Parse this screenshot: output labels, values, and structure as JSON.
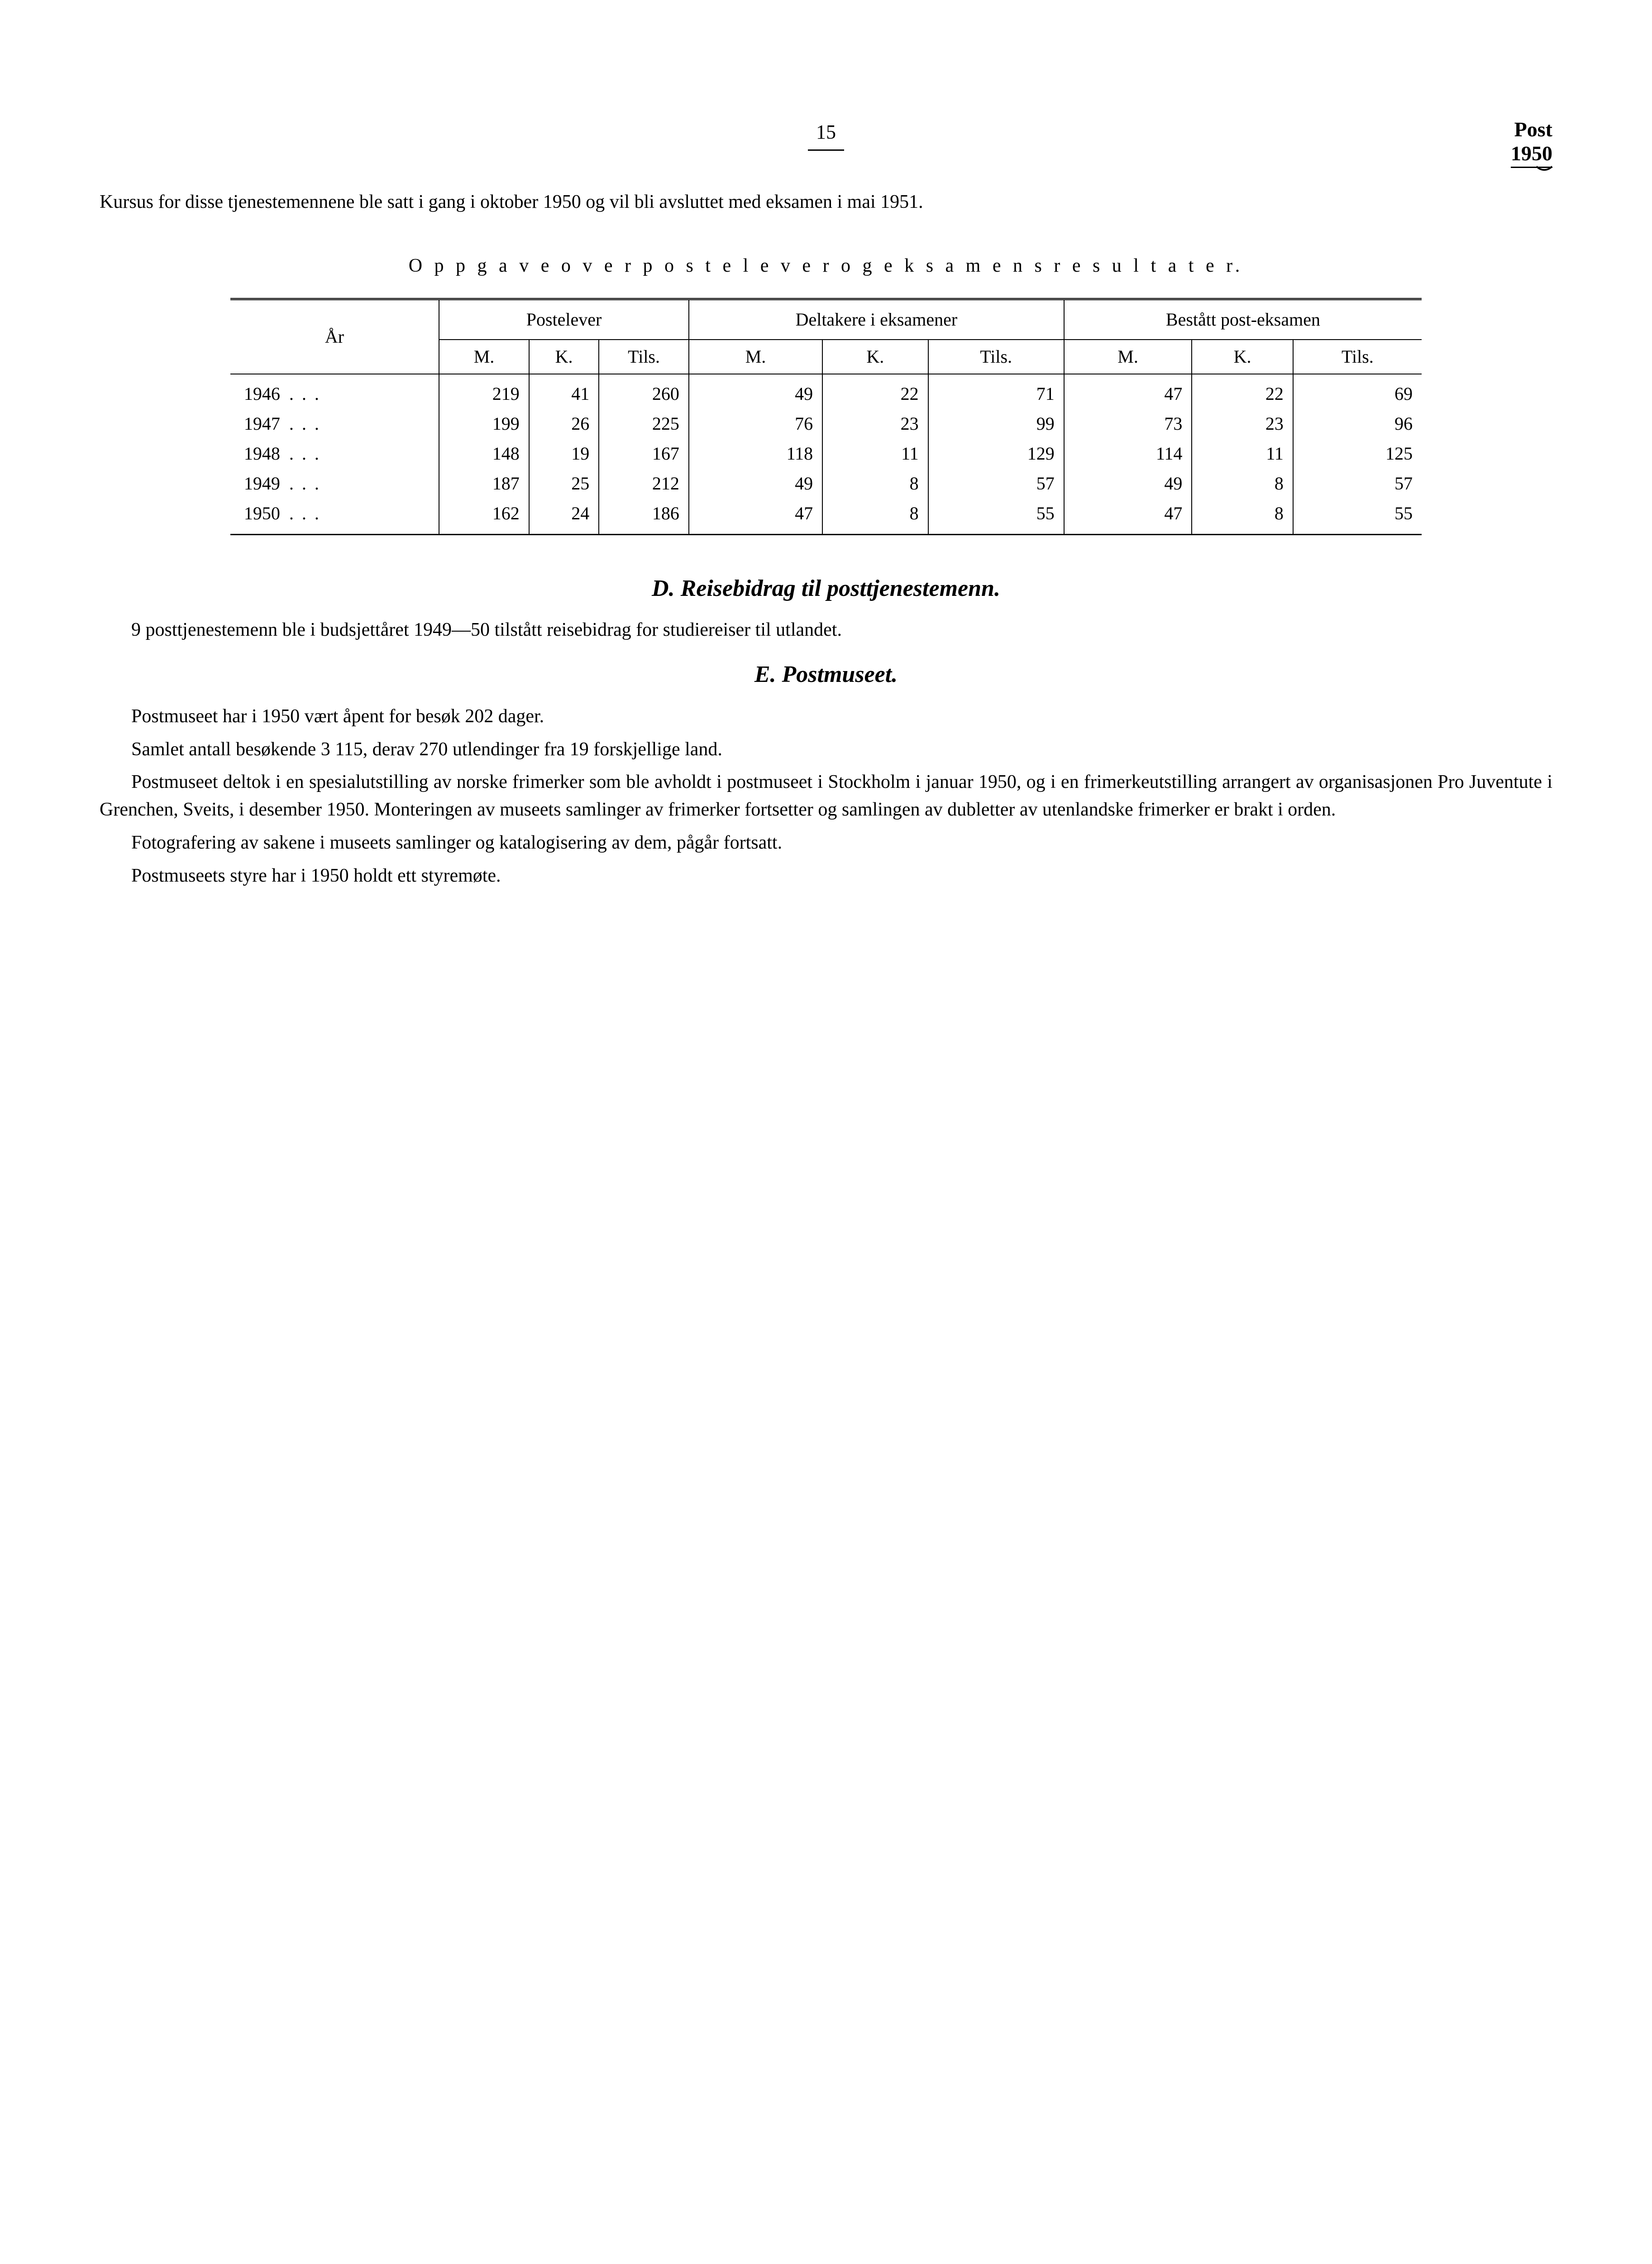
{
  "header": {
    "page_number": "15",
    "corner_label": "Post",
    "corner_year": "1950"
  },
  "intro_paragraph": "Kursus for disse tjenestemennene ble satt i gang i oktober 1950 og vil bli avsluttet med eksamen i mai 1951.",
  "table_title": "O p p g a v e   o v e r   p o s t e l e v e r   o g   e k s a m e n s r e s u l t a t e r.",
  "table": {
    "col_year": "År",
    "group1": "Postelever",
    "group2": "Deltakere i eksamener",
    "group3": "Bestått post-eksamen",
    "sub_m": "M.",
    "sub_k": "K.",
    "sub_tils": "Tils.",
    "rows": [
      {
        "year": "1946",
        "p_m": "219",
        "p_k": "41",
        "p_t": "260",
        "d_m": "49",
        "d_k": "22",
        "d_t": "71",
        "b_m": "47",
        "b_k": "22",
        "b_t": "69"
      },
      {
        "year": "1947",
        "p_m": "199",
        "p_k": "26",
        "p_t": "225",
        "d_m": "76",
        "d_k": "23",
        "d_t": "99",
        "b_m": "73",
        "b_k": "23",
        "b_t": "96"
      },
      {
        "year": "1948",
        "p_m": "148",
        "p_k": "19",
        "p_t": "167",
        "d_m": "118",
        "d_k": "11",
        "d_t": "129",
        "b_m": "114",
        "b_k": "11",
        "b_t": "125"
      },
      {
        "year": "1949",
        "p_m": "187",
        "p_k": "25",
        "p_t": "212",
        "d_m": "49",
        "d_k": "8",
        "d_t": "57",
        "b_m": "49",
        "b_k": "8",
        "b_t": "57"
      },
      {
        "year": "1950",
        "p_m": "162",
        "p_k": "24",
        "p_t": "186",
        "d_m": "47",
        "d_k": "8",
        "d_t": "55",
        "b_m": "47",
        "b_k": "8",
        "b_t": "55"
      }
    ]
  },
  "section_d": {
    "heading": "D.   Reisebidrag til posttjenestemenn.",
    "para": "9 posttjenestemenn ble i budsjettåret 1949—50 tilstått reisebidrag for studiereiser til utlandet."
  },
  "section_e": {
    "heading": "E.    Postmuseet.",
    "p1": "Postmuseet har i 1950 vært åpent for besøk 202 dager.",
    "p2": "Samlet antall besøkende 3 115, derav 270 utlendinger fra 19 forskjellige land.",
    "p3": "Postmuseet deltok i en spesialutstilling av norske frimerker som ble avholdt i postmuseet i Stockholm i januar 1950, og i en frimerkeutstilling arrangert av organisasjonen Pro Juventute i Grenchen, Sveits, i desember 1950. Monteringen av museets samlinger av frimerker fortsetter og samlingen av dubletter av utenlandske frimerker er brakt i orden.",
    "p4": "Fotografering av sakene i museets samlinger og katalogisering av dem, pågår fortsatt.",
    "p5": "Postmuseets styre har i 1950 holdt ett styremøte."
  }
}
